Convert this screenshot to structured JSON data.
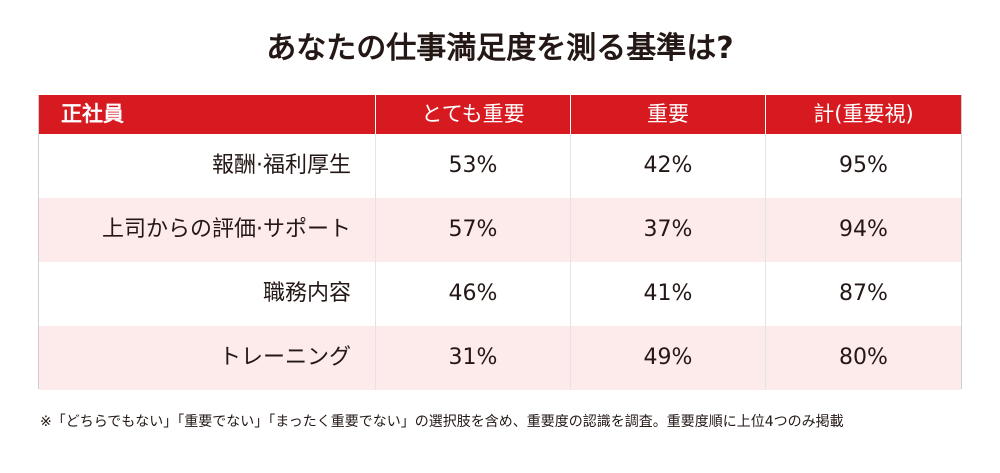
{
  "title": "あなたの仕事満足度を測る基準は?",
  "chart_data": {
    "type": "table",
    "title": "あなたの仕事満足度を測る基準は?",
    "columns": [
      "正社員",
      "とても重要",
      "重要",
      "計(重要視)"
    ],
    "rows": [
      {
        "label": "報酬·福利厚生",
        "values": [
          "53%",
          "42%",
          "95%"
        ]
      },
      {
        "label": "上司からの評価·サポート",
        "values": [
          "57%",
          "37%",
          "94%"
        ]
      },
      {
        "label": "職務内容",
        "values": [
          "46%",
          "41%",
          "87%"
        ]
      },
      {
        "label": "トレーニング",
        "values": [
          "31%",
          "49%",
          "80%"
        ]
      }
    ],
    "series": [
      {
        "name": "とても重要",
        "values": [
          53,
          57,
          46,
          31
        ]
      },
      {
        "name": "重要",
        "values": [
          42,
          37,
          41,
          49
        ]
      },
      {
        "name": "計(重要視)",
        "values": [
          95,
          94,
          87,
          80
        ]
      }
    ],
    "categories": [
      "報酬·福利厚生",
      "上司からの評価·サポート",
      "職務内容",
      "トレーニング"
    ],
    "unit": "%"
  },
  "colors": {
    "header_bg": "#d71920",
    "header_text": "#ffffff",
    "alt_row_bg": "#fdeaea",
    "text": "#231815"
  },
  "footnote": "※「どちらでもない」「重要でない」「まったく重要でない」の選択肢を含め、重要度の認識を調査。重要度順に上位4つのみ掲載"
}
